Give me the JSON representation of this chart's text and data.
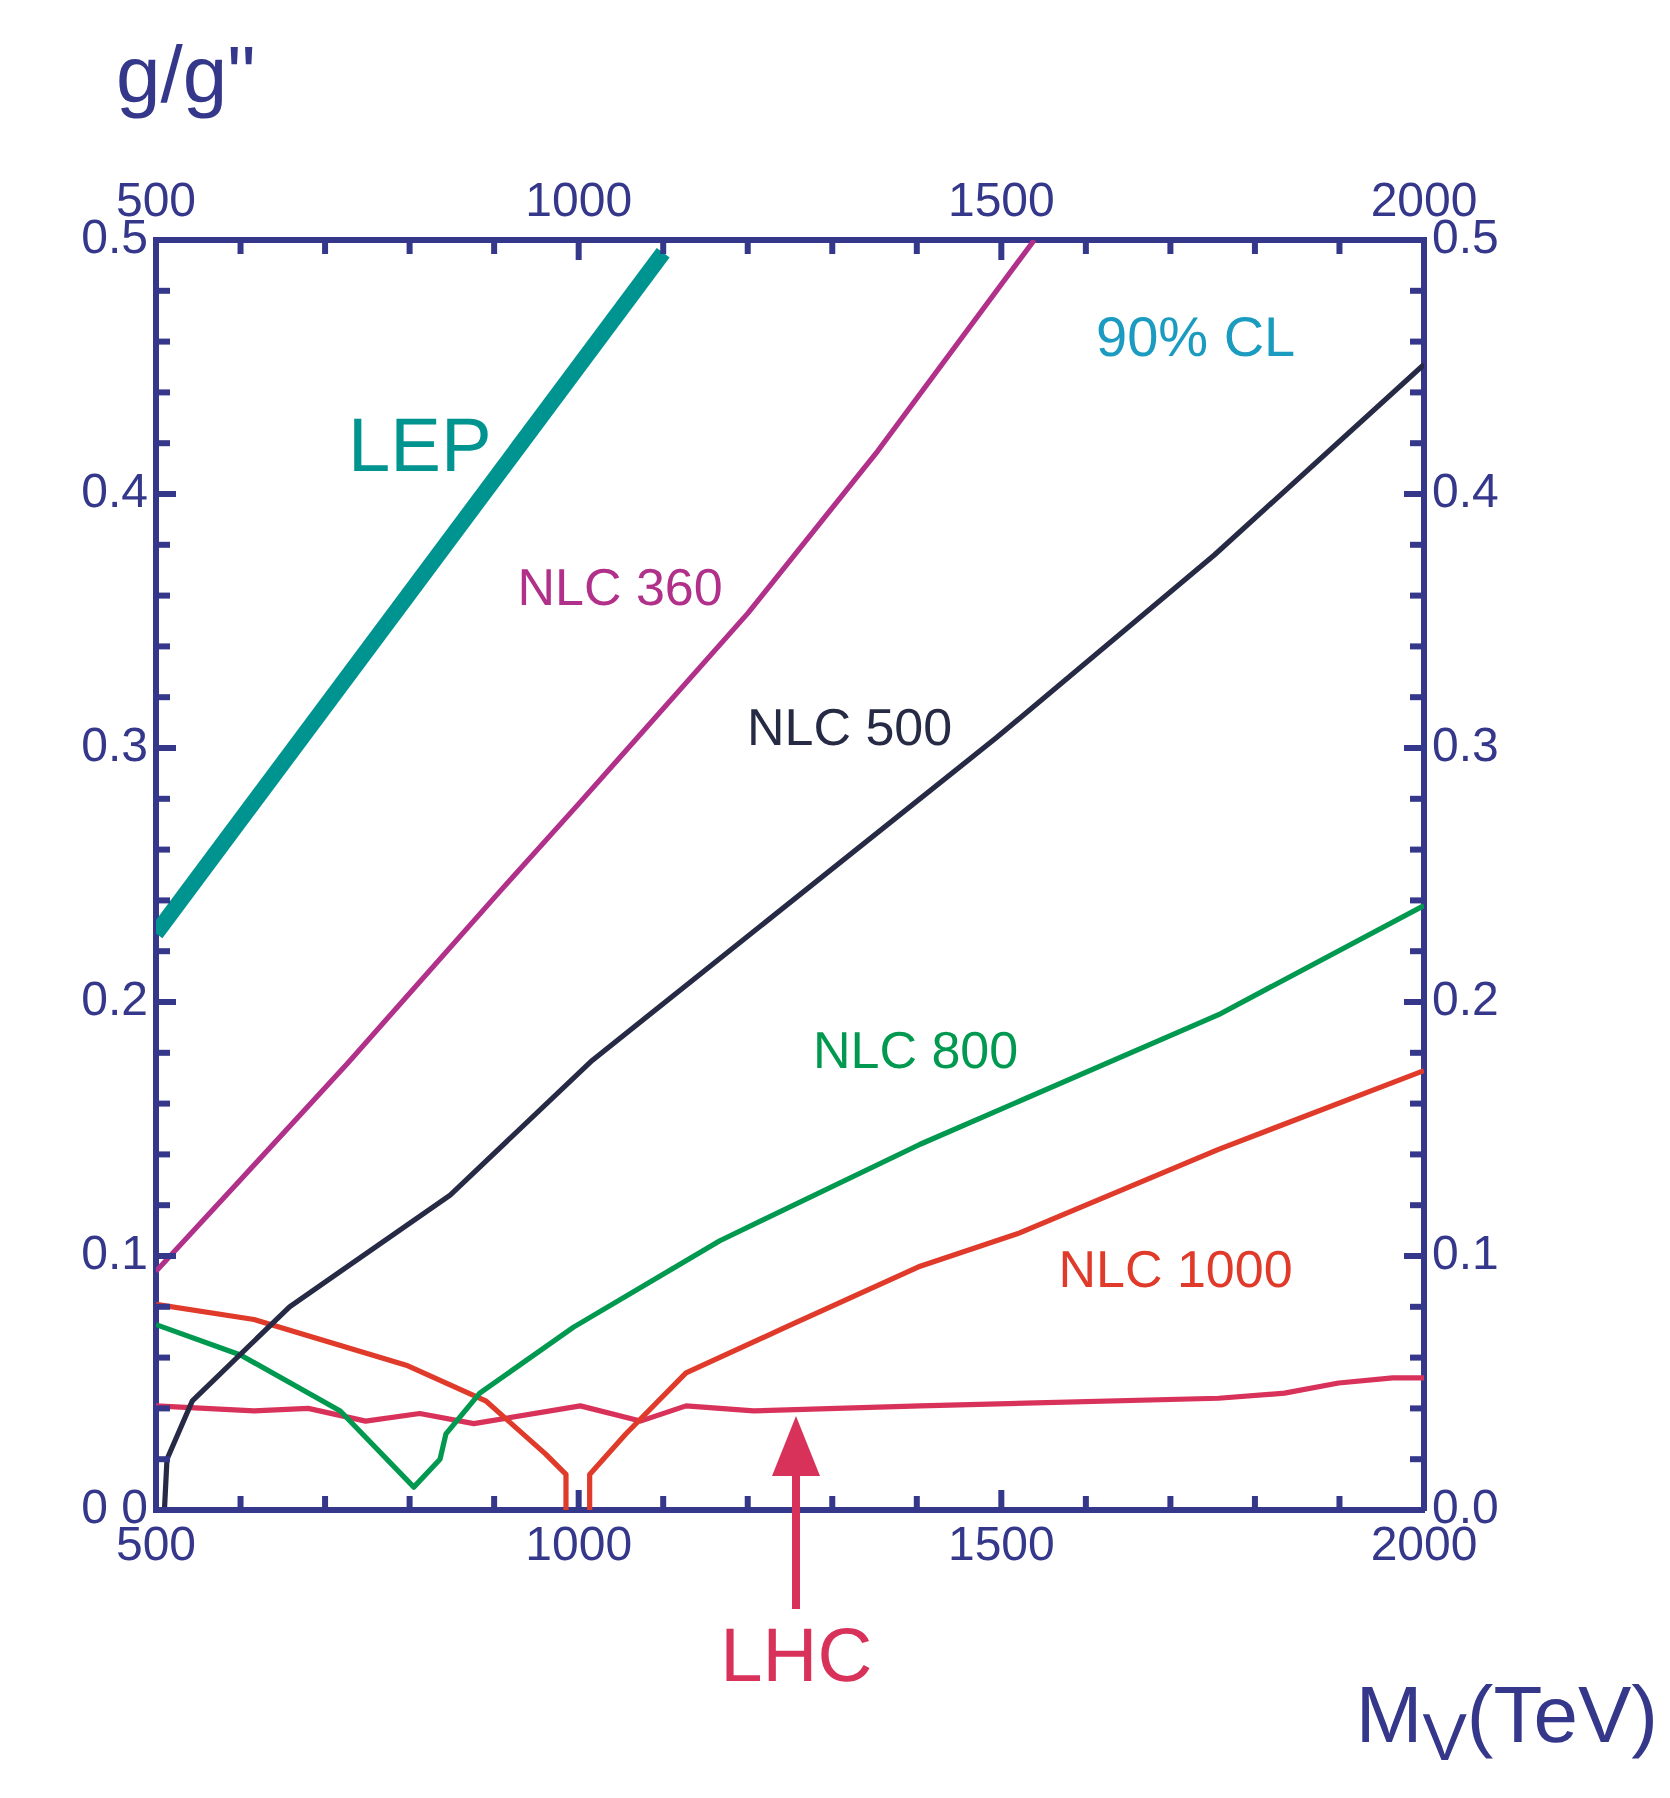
{
  "chart_data": {
    "type": "line",
    "xlabel": "M$_{V}$(TeV)",
    "ylabel": "g/g\"",
    "annotations": [
      "90% CL"
    ],
    "xlim": [
      500,
      2000
    ],
    "xticks": [
      500,
      1000,
      1500,
      2000
    ],
    "x2lim": [
      500,
      2000
    ],
    "x2ticks": [
      500,
      1000,
      1500,
      2000
    ],
    "ylim": [
      0,
      0.5
    ],
    "yticks": [
      {
        "value": 0,
        "label": "0 0"
      },
      0.1,
      0.2,
      0.3,
      0.4,
      0.5
    ],
    "y2lim": [
      0,
      0.5
    ],
    "y2ticks": [
      {
        "value": 0,
        "label": "0.0"
      },
      0.1,
      0.2,
      0.3,
      0.4,
      0.5
    ],
    "grid": false,
    "legend": false,
    "marker": "none",
    "line_style": "solid",
    "series": [
      {
        "name": "LEP",
        "color": "#009490",
        "x": [
          500,
          1100
        ],
        "values": [
          0.227,
          0.495
        ]
      },
      {
        "name": "NLC 360",
        "color": "#b0308a",
        "x": [
          500,
          600,
          727,
          900,
          1000,
          1200,
          1354,
          1539
        ],
        "values": [
          0.094,
          0.13,
          0.176,
          0.241,
          0.278,
          0.353,
          0.417,
          0.5
        ]
      },
      {
        "name": "NLC 500",
        "color": "#262a45",
        "x": [
          510,
          513,
          543,
          658,
          848,
          1016,
          1494,
          1752,
          2000
        ],
        "values": [
          0,
          0.02,
          0.043,
          0.08,
          0.124,
          0.177,
          0.304,
          0.376,
          0.451
        ]
      },
      {
        "name": "NLC 800",
        "color": "#00994f",
        "x": [
          500,
          600,
          718,
          805,
          836,
          843,
          883,
          994,
          1167,
          1404,
          1757,
          2000
        ],
        "values": [
          0.073,
          0.061,
          0.039,
          0.009,
          0.02,
          0.03,
          0.046,
          0.072,
          0.106,
          0.144,
          0.195,
          0.238
        ]
      },
      {
        "name": "NLC 1000",
        "color": "#e03a2a",
        "x": [
          500,
          616,
          796,
          890,
          961,
          985,
          985,
          999,
          1013,
          1013,
          1056,
          1127,
          1245,
          1404,
          1521,
          1757,
          2000
        ],
        "values": [
          0.081,
          0.075,
          0.057,
          0.043,
          0.022,
          0.014,
          0,
          null,
          0,
          0.014,
          0.03,
          0.054,
          0.072,
          0.096,
          0.109,
          0.142,
          0.173
        ]
      },
      {
        "name": "LHC",
        "color": "#d8325a",
        "x": [
          500,
          616,
          680,
          748,
          812,
          876,
          1002,
          1073,
          1127,
          1207,
          1404,
          1757,
          1835,
          1899,
          1963,
          2000
        ],
        "values": [
          0.041,
          0.039,
          0.04,
          0.035,
          0.038,
          0.034,
          0.041,
          0.035,
          0.041,
          0.039,
          0.041,
          0.044,
          0.046,
          0.05,
          0.052,
          0.052
        ]
      }
    ]
  }
}
